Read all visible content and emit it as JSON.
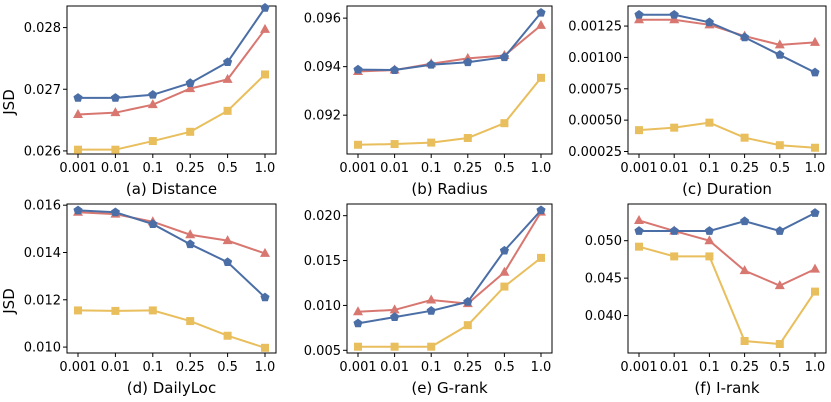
{
  "figure": {
    "ylabel": "JSD",
    "series_styles": [
      {
        "name": "series_blue",
        "color": "#4a6ea5",
        "marker": "pentagon"
      },
      {
        "name": "series_red",
        "color": "#d87670",
        "marker": "triangle"
      },
      {
        "name": "series_yellow",
        "color": "#e9be5c",
        "marker": "square"
      }
    ]
  },
  "chart_data": [
    {
      "type": "line",
      "title": "(a) Distance",
      "categories": [
        "0.001",
        "0.01",
        "0.1",
        "0.25",
        "0.5",
        "1.0"
      ],
      "ylim": [
        0.02595,
        0.02835
      ],
      "yticks": [
        0.026,
        0.027,
        0.028
      ],
      "ytick_labels": [
        "0.026",
        "0.027",
        "0.028"
      ],
      "series": [
        {
          "name": "series_blue",
          "values": [
            0.02686,
            0.02686,
            0.02691,
            0.0271,
            0.02744,
            0.02832
          ]
        },
        {
          "name": "series_red",
          "values": [
            0.02659,
            0.02662,
            0.02675,
            0.02701,
            0.02716,
            0.02797
          ]
        },
        {
          "name": "series_yellow",
          "values": [
            0.02602,
            0.02602,
            0.02616,
            0.02631,
            0.02665,
            0.02724
          ]
        }
      ]
    },
    {
      "type": "line",
      "title": "(b) Radius",
      "categories": [
        "0.001",
        "0.01",
        "0.1",
        "0.25",
        "0.5",
        "1.0"
      ],
      "ylim": [
        0.0904,
        0.0965
      ],
      "yticks": [
        0.092,
        0.094,
        0.096
      ],
      "ytick_labels": [
        "0.092",
        "0.094",
        "0.096"
      ],
      "series": [
        {
          "name": "series_blue",
          "values": [
            0.09388,
            0.09386,
            0.09408,
            0.09418,
            0.09439,
            0.09622
          ]
        },
        {
          "name": "series_red",
          "values": [
            0.0938,
            0.09386,
            0.09412,
            0.09434,
            0.09446,
            0.0957
          ]
        },
        {
          "name": "series_yellow",
          "values": [
            0.09078,
            0.09081,
            0.09087,
            0.09106,
            0.09167,
            0.09354
          ]
        }
      ]
    },
    {
      "type": "line",
      "title": "(c) Duration",
      "categories": [
        "0.001",
        "0.01",
        "0.1",
        "0.25",
        "0.5",
        "1.0"
      ],
      "ylim": [
        0.00023,
        0.00141
      ],
      "yticks": [
        0.00025,
        0.0005,
        0.00075,
        0.001,
        0.00125
      ],
      "ytick_labels": [
        "0.00025",
        "0.00050",
        "0.00075",
        "0.00100",
        "0.00125"
      ],
      "series": [
        {
          "name": "series_blue",
          "values": [
            0.00134,
            0.00134,
            0.00128,
            0.00116,
            0.00102,
            0.00088
          ]
        },
        {
          "name": "series_red",
          "values": [
            0.0013,
            0.0013,
            0.00126,
            0.00117,
            0.0011,
            0.00112
          ]
        },
        {
          "name": "series_yellow",
          "values": [
            0.00042,
            0.00044,
            0.00048,
            0.00036,
            0.0003,
            0.00028
          ]
        }
      ]
    },
    {
      "type": "line",
      "title": "(d) DailyLoc",
      "categories": [
        "0.001",
        "0.01",
        "0.1",
        "0.25",
        "0.5",
        "1.0"
      ],
      "ylim": [
        0.00975,
        0.01605
      ],
      "yticks": [
        0.01,
        0.012,
        0.014,
        0.016
      ],
      "ytick_labels": [
        "0.010",
        "0.012",
        "0.014",
        "0.016"
      ],
      "series": [
        {
          "name": "series_blue",
          "values": [
            0.01578,
            0.0157,
            0.0152,
            0.01435,
            0.01359,
            0.0121
          ]
        },
        {
          "name": "series_red",
          "values": [
            0.0157,
            0.01562,
            0.0153,
            0.01475,
            0.0145,
            0.01396
          ]
        },
        {
          "name": "series_yellow",
          "values": [
            0.01155,
            0.01153,
            0.01155,
            0.0111,
            0.01048,
            0.00997
          ]
        }
      ]
    },
    {
      "type": "line",
      "title": "(e) G-rank",
      "categories": [
        "0.001",
        "0.01",
        "0.1",
        "0.25",
        "0.5",
        "1.0"
      ],
      "ylim": [
        0.0047,
        0.0213
      ],
      "yticks": [
        0.005,
        0.01,
        0.015,
        0.02
      ],
      "ytick_labels": [
        "0.005",
        "0.010",
        "0.015",
        "0.020"
      ],
      "series": [
        {
          "name": "series_blue",
          "values": [
            0.008,
            0.0087,
            0.0094,
            0.0104,
            0.0161,
            0.0206
          ]
        },
        {
          "name": "series_red",
          "values": [
            0.0093,
            0.0095,
            0.0106,
            0.0102,
            0.0137,
            0.0204
          ]
        },
        {
          "name": "series_yellow",
          "values": [
            0.0054,
            0.0054,
            0.0054,
            0.0078,
            0.0121,
            0.0153
          ]
        }
      ]
    },
    {
      "type": "line",
      "title": "(f) I-rank",
      "categories": [
        "0.001",
        "0.01",
        "0.1",
        "0.25",
        "0.5",
        "1.0"
      ],
      "ylim": [
        0.035,
        0.0549
      ],
      "yticks": [
        0.04,
        0.045,
        0.05
      ],
      "ytick_labels": [
        "0.040",
        "0.045",
        "0.050"
      ],
      "series": [
        {
          "name": "series_blue",
          "values": [
            0.0513,
            0.0513,
            0.0513,
            0.0526,
            0.0513,
            0.0537
          ]
        },
        {
          "name": "series_red",
          "values": [
            0.0527,
            0.0513,
            0.05,
            0.046,
            0.044,
            0.0462
          ]
        },
        {
          "name": "series_yellow",
          "values": [
            0.0492,
            0.0479,
            0.0479,
            0.0366,
            0.0362,
            0.0432
          ]
        }
      ]
    }
  ]
}
